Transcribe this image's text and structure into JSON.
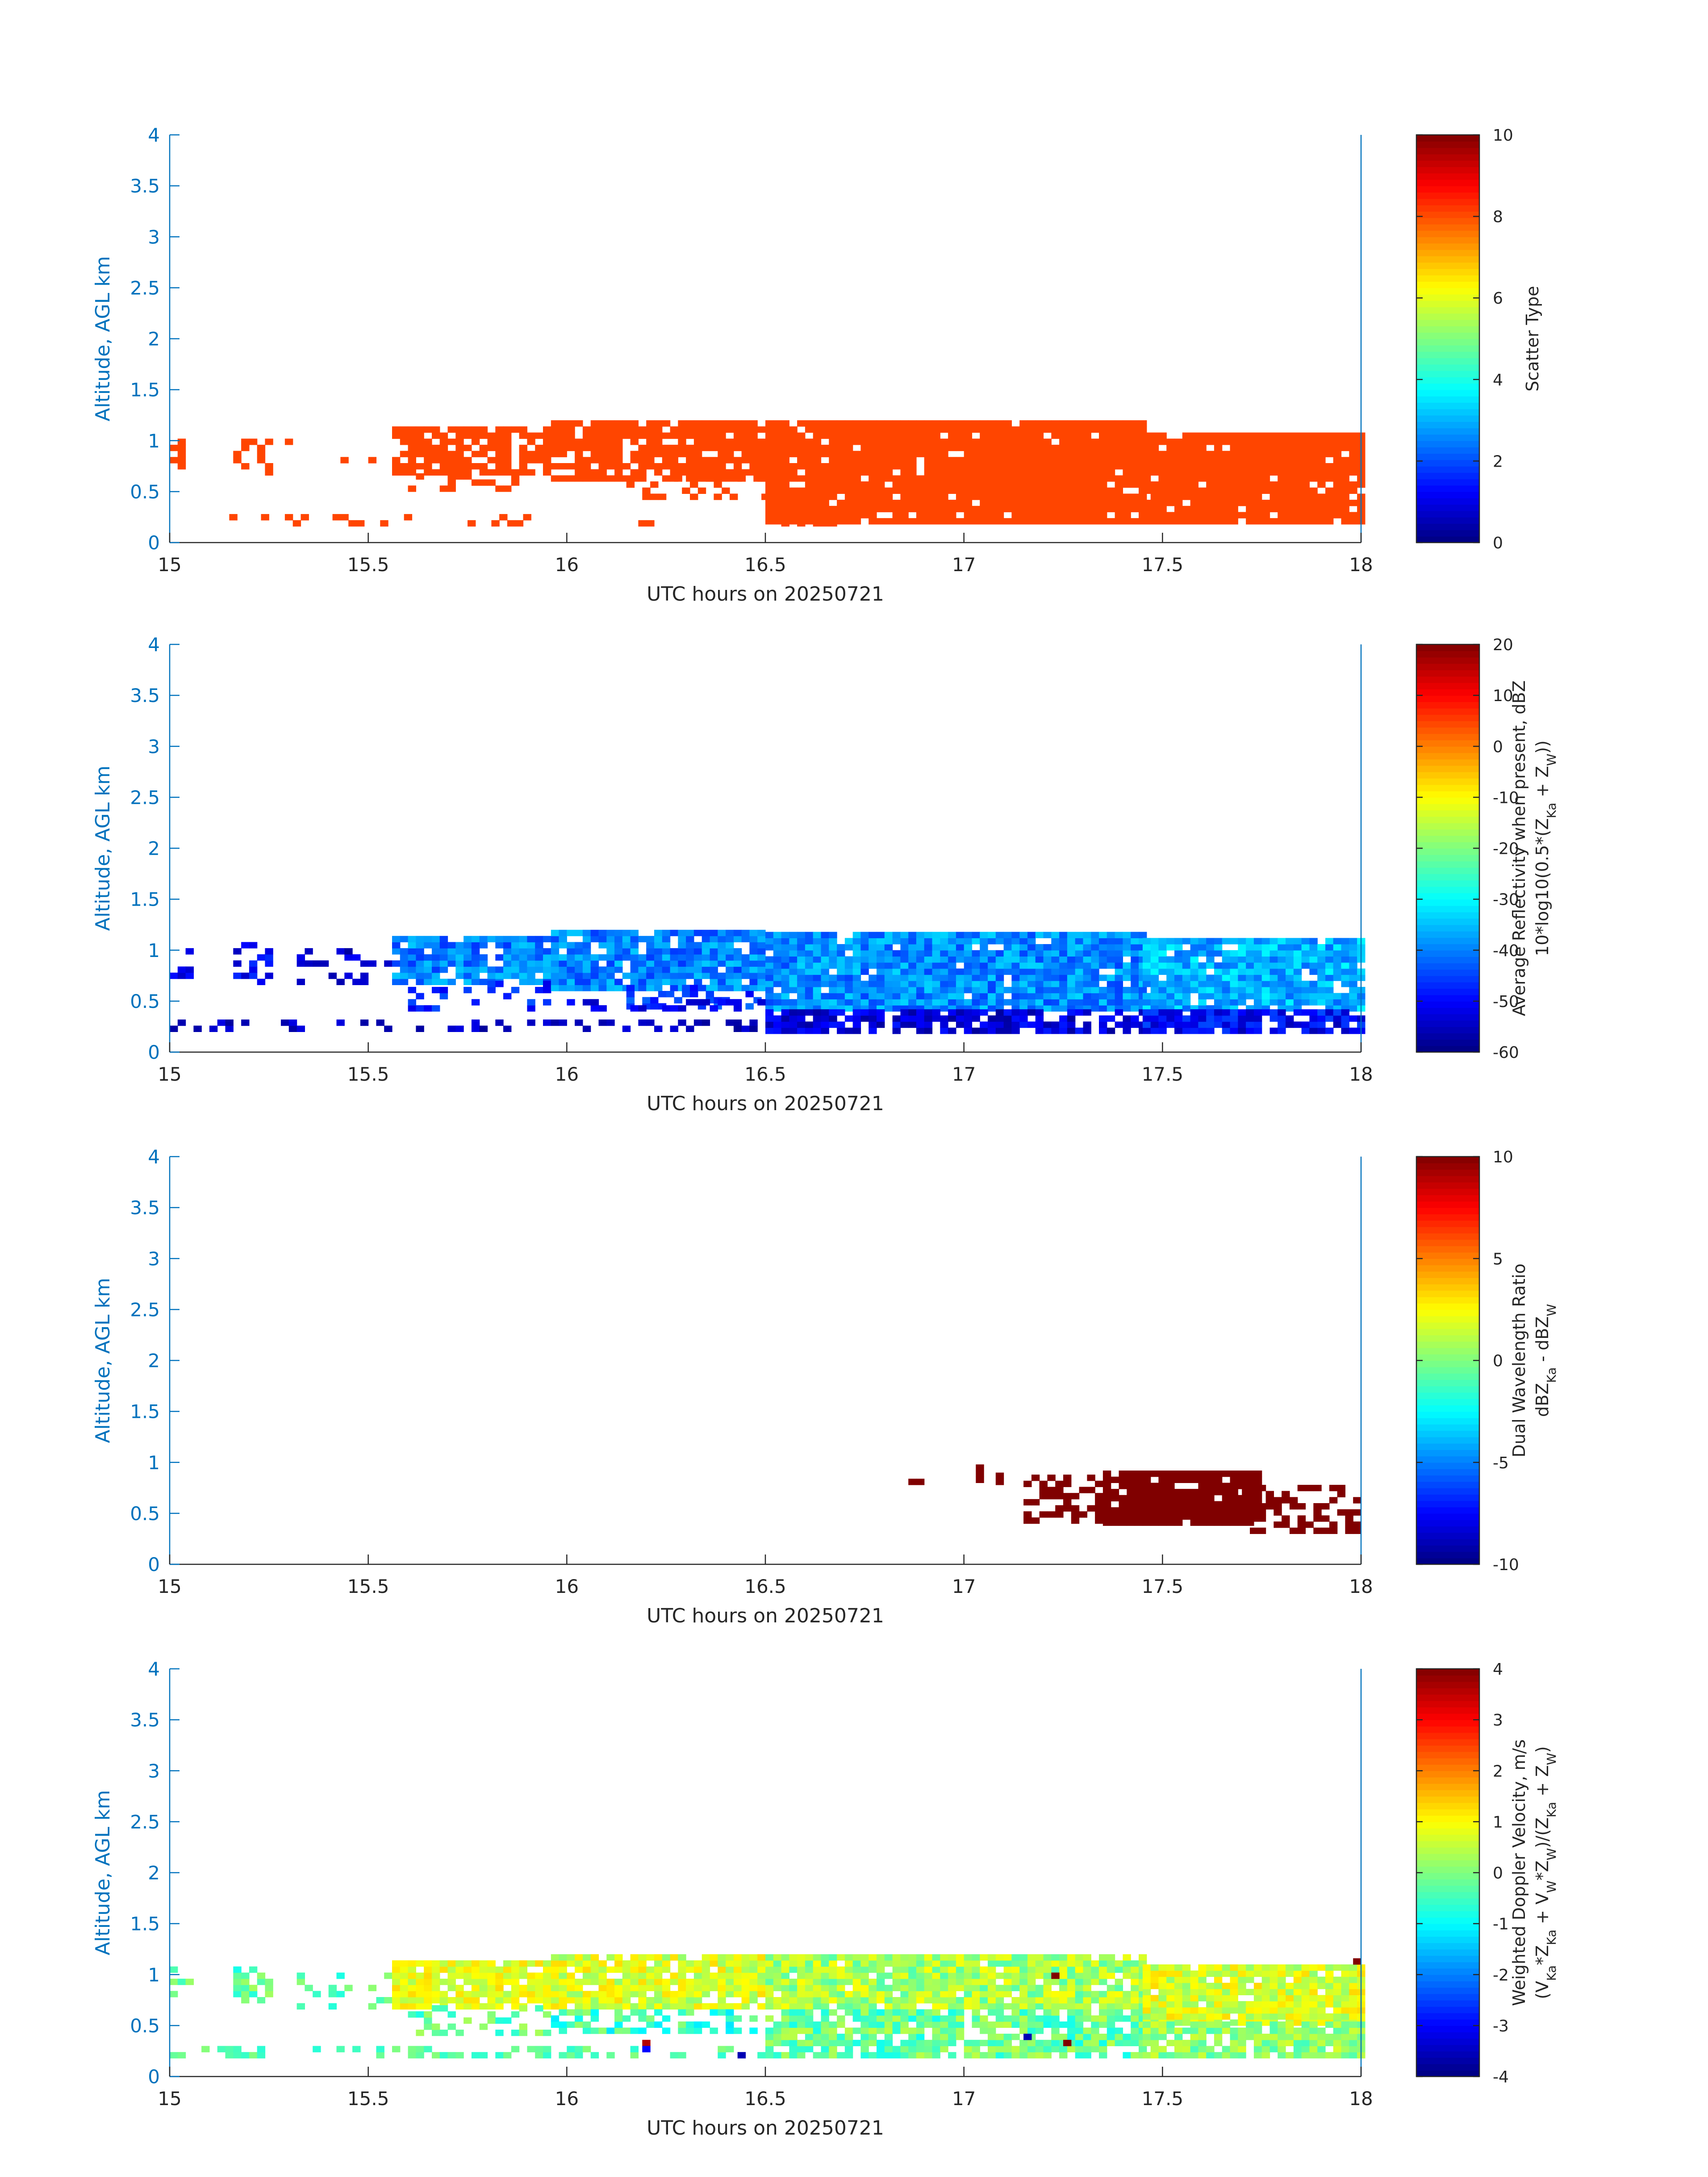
{
  "colormap": "jet",
  "colors": {
    "axis_y": "#0072BD",
    "axis_x": "#262626",
    "background": "#FFFFFF",
    "scatter_type_fill": "#FF4500"
  },
  "chart_data": [
    {
      "id": "scatter_type",
      "type": "heatmap",
      "xlabel": "UTC hours on 20250721",
      "ylabel": "Altitude, AGL km",
      "xlim": [
        15,
        18
      ],
      "ylim": [
        0,
        4
      ],
      "xticks": [
        "15",
        "15.5",
        "16",
        "16.5",
        "17",
        "17.5",
        "18"
      ],
      "yticks": [
        "0",
        "0.5",
        "1",
        "1.5",
        "2",
        "2.5",
        "3",
        "3.5",
        "4"
      ],
      "grid": false,
      "colorbar": {
        "label_lines": [
          "Scatter Type"
        ],
        "range": [
          0,
          10
        ],
        "ticks": [
          "0",
          "2",
          "4",
          "6",
          "8",
          "10"
        ]
      },
      "cell_size": {
        "x_hours": 0.02,
        "y_km": 0.06
      },
      "dominant_value": 8.3,
      "regions": [
        {
          "x": [
            15.0,
            15.03
          ],
          "y": [
            0.72,
            1.02
          ],
          "value": 8.3,
          "density": 0.5
        },
        {
          "x": [
            15.16,
            15.25
          ],
          "y": [
            0.66,
            1.02
          ],
          "value": 8.3,
          "density": 0.45
        },
        {
          "x": [
            15.29,
            15.31
          ],
          "y": [
            0.96,
            1.0
          ],
          "value": 8.3,
          "density": 0.9
        },
        {
          "x": [
            15.43,
            15.45
          ],
          "y": [
            0.78,
            0.84
          ],
          "value": 8.3,
          "density": 0.9
        },
        {
          "x": [
            15.5,
            15.52
          ],
          "y": [
            0.78,
            0.84
          ],
          "value": 8.3,
          "density": 0.9
        },
        {
          "x": [
            15.56,
            15.96
          ],
          "y": [
            0.66,
            1.1
          ],
          "value": 8.3,
          "density": 0.78
        },
        {
          "x": [
            15.6,
            15.96
          ],
          "y": [
            0.5,
            0.68
          ],
          "value": 8.3,
          "density": 0.22
        },
        {
          "x": [
            15.96,
            16.5
          ],
          "y": [
            0.6,
            1.18
          ],
          "value": 8.3,
          "density": 0.86
        },
        {
          "x": [
            16.15,
            16.5
          ],
          "y": [
            0.42,
            0.62
          ],
          "value": 8.3,
          "density": 0.35
        },
        {
          "x": [
            16.5,
            17.45
          ],
          "y": [
            0.18,
            1.15
          ],
          "value": 8.3,
          "density": 0.95
        },
        {
          "x": [
            17.45,
            18.0
          ],
          "y": [
            0.18,
            1.08
          ],
          "value": 8.3,
          "density": 0.93
        },
        {
          "x": [
            15.05,
            15.97
          ],
          "y": [
            0.16,
            0.26
          ],
          "value": 8.3,
          "density": 0.18
        },
        {
          "x": [
            16.18,
            16.22
          ],
          "y": [
            0.16,
            0.22
          ],
          "value": 8.3,
          "density": 0.9
        },
        {
          "x": [
            16.5,
            16.68
          ],
          "y": [
            0.16,
            0.26
          ],
          "value": 8.3,
          "density": 0.6
        }
      ]
    },
    {
      "id": "reflectivity",
      "type": "heatmap",
      "xlabel": "UTC hours on 20250721",
      "ylabel": "Altitude, AGL km",
      "xlim": [
        15,
        18
      ],
      "ylim": [
        0,
        4
      ],
      "xticks": [
        "15",
        "15.5",
        "16",
        "16.5",
        "17",
        "17.5",
        "18"
      ],
      "yticks": [
        "0",
        "0.5",
        "1",
        "1.5",
        "2",
        "2.5",
        "3",
        "3.5",
        "4"
      ],
      "grid": false,
      "colorbar": {
        "label_lines": [
          "Average Reflectivity when present, dBZ",
          "10*log10(0.5*(Z_Ka + Z_W))"
        ],
        "range": [
          -60,
          20
        ],
        "ticks": [
          "-60",
          "-50",
          "-40",
          "-30",
          "-20",
          "-10",
          "0",
          "10",
          "20"
        ]
      },
      "cell_size": {
        "x_hours": 0.02,
        "y_km": 0.06
      },
      "regions": [
        {
          "x": [
            15.0,
            15.05
          ],
          "y": [
            0.72,
            1.02
          ],
          "value": -52,
          "spread": 4,
          "density": 0.45
        },
        {
          "x": [
            15.16,
            15.25
          ],
          "y": [
            0.66,
            1.06
          ],
          "value": -50,
          "spread": 5,
          "density": 0.45
        },
        {
          "x": [
            15.3,
            15.55
          ],
          "y": [
            0.66,
            1.0
          ],
          "value": -54,
          "spread": 4,
          "density": 0.18
        },
        {
          "x": [
            15.56,
            15.96
          ],
          "y": [
            0.66,
            1.1
          ],
          "value": -40,
          "spread": 6,
          "density": 0.85
        },
        {
          "x": [
            15.6,
            15.96
          ],
          "y": [
            0.4,
            0.66
          ],
          "value": -48,
          "spread": 5,
          "density": 0.3
        },
        {
          "x": [
            15.96,
            16.5
          ],
          "y": [
            0.6,
            1.18
          ],
          "value": -40,
          "spread": 6,
          "density": 0.88
        },
        {
          "x": [
            16.15,
            16.5
          ],
          "y": [
            0.42,
            0.62
          ],
          "value": -46,
          "spread": 5,
          "density": 0.35
        },
        {
          "x": [
            16.5,
            17.45
          ],
          "y": [
            0.4,
            1.15
          ],
          "value": -39,
          "spread": 6,
          "density": 0.95
        },
        {
          "x": [
            16.5,
            17.45
          ],
          "y": [
            0.18,
            0.42
          ],
          "value": -53,
          "spread": 5,
          "density": 0.75
        },
        {
          "x": [
            17.45,
            18.0
          ],
          "y": [
            0.4,
            1.1
          ],
          "value": -36,
          "spread": 6,
          "density": 0.94
        },
        {
          "x": [
            17.45,
            18.0
          ],
          "y": [
            0.18,
            0.42
          ],
          "value": -50,
          "spread": 6,
          "density": 0.85
        },
        {
          "x": [
            15.0,
            16.5
          ],
          "y": [
            0.2,
            0.28
          ],
          "value": -55,
          "spread": 3,
          "density": 0.32
        },
        {
          "x": [
            16.0,
            16.5
          ],
          "y": [
            0.4,
            0.52
          ],
          "value": -52,
          "spread": 3,
          "density": 0.25
        }
      ]
    },
    {
      "id": "dwr",
      "type": "heatmap",
      "xlabel": "UTC hours on 20250721",
      "ylabel": "Altitude, AGL km",
      "xlim": [
        15,
        18
      ],
      "ylim": [
        0,
        4
      ],
      "xticks": [
        "15",
        "15.5",
        "16",
        "16.5",
        "17",
        "17.5",
        "18"
      ],
      "yticks": [
        "0",
        "0.5",
        "1",
        "1.5",
        "2",
        "2.5",
        "3",
        "3.5",
        "4"
      ],
      "grid": false,
      "colorbar": {
        "label_lines": [
          "Dual Wavelength Ratio",
          "dBZ_Ka - dBZ_W"
        ],
        "range": [
          -10,
          10
        ],
        "ticks": [
          "-10",
          "-5",
          "0",
          "5",
          "10"
        ]
      },
      "cell_size": {
        "x_hours": 0.02,
        "y_km": 0.06
      },
      "regions": [
        {
          "x": [
            16.86,
            16.89
          ],
          "y": [
            0.78,
            0.84
          ],
          "value": 10,
          "density": 1.0
        },
        {
          "x": [
            17.03,
            17.05
          ],
          "y": [
            0.8,
            0.95
          ],
          "value": 10,
          "density": 1.0
        },
        {
          "x": [
            17.08,
            17.1
          ],
          "y": [
            0.78,
            0.86
          ],
          "value": 10,
          "density": 1.0
        },
        {
          "x": [
            17.15,
            17.35
          ],
          "y": [
            0.4,
            0.84
          ],
          "value": 10,
          "density": 0.55
        },
        {
          "x": [
            17.35,
            17.75
          ],
          "y": [
            0.38,
            0.9
          ],
          "value": 10,
          "density": 0.92
        },
        {
          "x": [
            17.7,
            18.0
          ],
          "y": [
            0.3,
            0.76
          ],
          "value": 10,
          "density": 0.62
        }
      ]
    },
    {
      "id": "doppler",
      "type": "heatmap",
      "xlabel": "UTC hours on 20250721",
      "ylabel": "Altitude, AGL km",
      "xlim": [
        15,
        18
      ],
      "ylim": [
        0,
        4
      ],
      "xticks": [
        "15",
        "15.5",
        "16",
        "16.5",
        "17",
        "17.5",
        "18"
      ],
      "yticks": [
        "0",
        "0.5",
        "1",
        "1.5",
        "2",
        "2.5",
        "3",
        "3.5",
        "4"
      ],
      "grid": false,
      "colorbar": {
        "label_lines": [
          "Weighted Doppler Velocity, m/s",
          "(V_Ka*Z_Ka + V_W*Z_W)/(Z_Ka + Z_W)"
        ],
        "range": [
          -4,
          4
        ],
        "ticks": [
          "-4",
          "-3",
          "-2",
          "-1",
          "0",
          "1",
          "2",
          "3",
          "4"
        ]
      },
      "cell_size": {
        "x_hours": 0.02,
        "y_km": 0.06
      },
      "regions": [
        {
          "x": [
            15.0,
            15.05
          ],
          "y": [
            0.72,
            1.06
          ],
          "value": -0.2,
          "spread": 0.5,
          "density": 0.5
        },
        {
          "x": [
            15.16,
            15.25
          ],
          "y": [
            0.66,
            1.06
          ],
          "value": -0.3,
          "spread": 0.6,
          "density": 0.5
        },
        {
          "x": [
            15.3,
            15.55
          ],
          "y": [
            0.66,
            1.0
          ],
          "value": -0.3,
          "spread": 0.5,
          "density": 0.18
        },
        {
          "x": [
            15.56,
            15.96
          ],
          "y": [
            0.66,
            1.12
          ],
          "value": 0.8,
          "spread": 0.5,
          "density": 0.88
        },
        {
          "x": [
            15.6,
            15.96
          ],
          "y": [
            0.4,
            0.66
          ],
          "value": -0.2,
          "spread": 0.6,
          "density": 0.3
        },
        {
          "x": [
            15.96,
            16.5
          ],
          "y": [
            0.66,
            1.18
          ],
          "value": 0.7,
          "spread": 0.6,
          "density": 0.88
        },
        {
          "x": [
            15.96,
            16.5
          ],
          "y": [
            0.42,
            0.66
          ],
          "value": -0.5,
          "spread": 0.7,
          "density": 0.45
        },
        {
          "x": [
            16.5,
            17.45
          ],
          "y": [
            0.66,
            1.15
          ],
          "value": 0.3,
          "spread": 0.7,
          "density": 0.95
        },
        {
          "x": [
            16.5,
            17.45
          ],
          "y": [
            0.18,
            0.66
          ],
          "value": -0.2,
          "spread": 0.7,
          "density": 0.82
        },
        {
          "x": [
            17.45,
            18.0
          ],
          "y": [
            0.5,
            1.08
          ],
          "value": 0.7,
          "spread": 0.6,
          "density": 0.94
        },
        {
          "x": [
            17.45,
            18.0
          ],
          "y": [
            0.18,
            0.5
          ],
          "value": 0.1,
          "spread": 0.6,
          "density": 0.88
        },
        {
          "x": [
            15.0,
            16.5
          ],
          "y": [
            0.18,
            0.28
          ],
          "value": -0.3,
          "spread": 0.4,
          "density": 0.38
        }
      ],
      "outliers": [
        {
          "x": 16.19,
          "y": 0.3,
          "value": 3.6
        },
        {
          "x": 16.19,
          "y": 0.24,
          "value": -3.0
        },
        {
          "x": 17.22,
          "y": 0.96,
          "value": 4.0
        },
        {
          "x": 17.25,
          "y": 0.3,
          "value": 4.0
        },
        {
          "x": 17.15,
          "y": 0.36,
          "value": -3.6
        },
        {
          "x": 16.43,
          "y": 0.18,
          "value": -3.6
        },
        {
          "x": 17.98,
          "y": 1.1,
          "value": 4.0
        }
      ]
    }
  ]
}
